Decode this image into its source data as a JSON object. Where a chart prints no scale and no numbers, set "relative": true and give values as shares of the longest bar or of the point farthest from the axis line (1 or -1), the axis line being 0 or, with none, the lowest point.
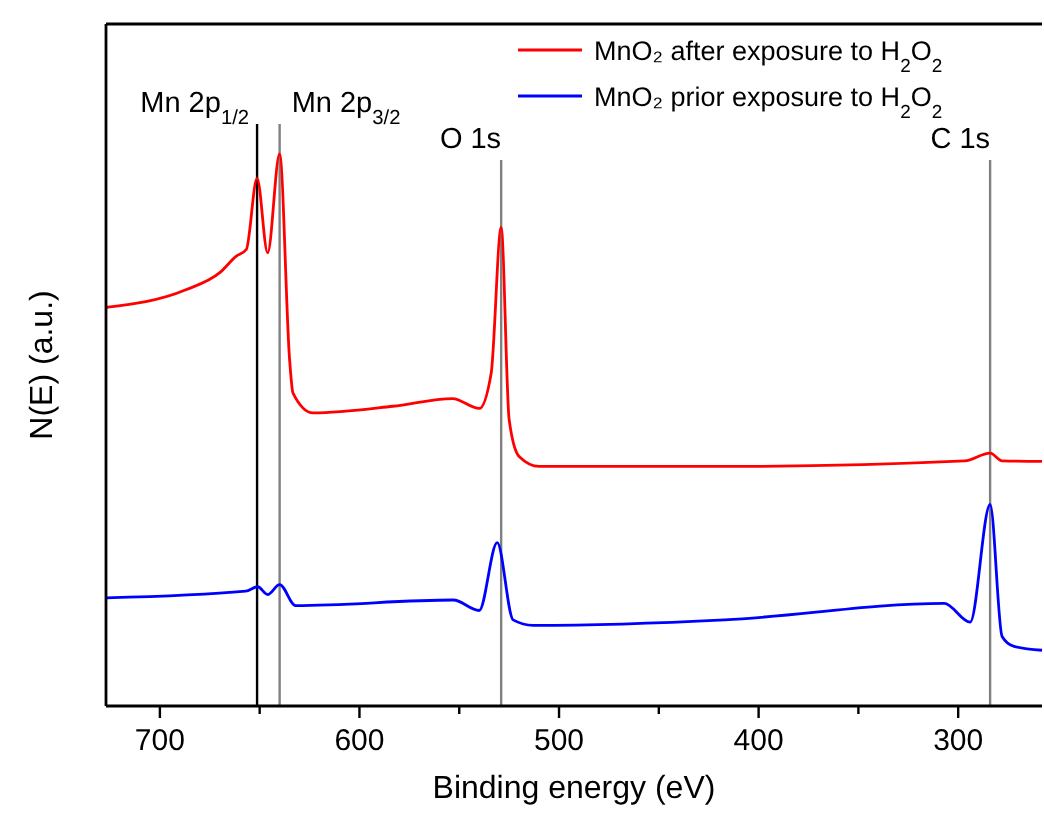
{
  "chart_data": {
    "type": "line",
    "xlabel": "Binding energy (eV)",
    "ylabel": "N(E) (a.u.)",
    "relative": true,
    "xlim": [
      727,
      258
    ],
    "xticks": [
      700,
      {
        "value": 650,
        "label": null
      },
      600,
      {
        "value": 550,
        "label": null
      },
      500,
      {
        "value": 450,
        "label": null
      },
      400,
      {
        "value": 350,
        "label": null
      },
      300
    ],
    "legend": "top right",
    "grid": false,
    "series": [
      {
        "name": "MnO₂ after exposure to H$_{2}$O$_{2}$",
        "color": "#ff0000",
        "x": [
          727,
          687,
          670,
          661.7,
          656.7,
          651.3,
          646,
          640,
          635,
          633.3,
          623.3,
          583.3,
          553.3,
          540,
          534,
          529,
          525,
          520,
          510,
          416.7,
          296.7,
          284,
          278,
          258
        ],
        "values": [
          0.722,
          0.754,
          0.785,
          0.815,
          0.827,
          0.956,
          0.821,
          1.0,
          0.627,
          0.567,
          0.531,
          0.543,
          0.557,
          0.539,
          0.603,
          0.867,
          0.519,
          0.452,
          0.434,
          0.434,
          0.444,
          0.458,
          0.444,
          0.443
        ]
      },
      {
        "name": "MnO₂ prior exposure to H$_{2}$O$_{2}$",
        "color": "#0000ff",
        "x": [
          727,
          657,
          651,
          646,
          640,
          632,
          553,
          540,
          531,
          523,
          513,
          417,
          307,
          294,
          284,
          278,
          272,
          258
        ],
        "values": [
          0.196,
          0.208,
          0.216,
          0.202,
          0.22,
          0.182,
          0.192,
          0.173,
          0.296,
          0.156,
          0.146,
          0.156,
          0.186,
          0.152,
          0.365,
          0.126,
          0.108,
          0.101
        ]
      }
    ],
    "ref_lines": [
      {
        "axis": "x",
        "value": 651.3,
        "label": "Mn 2p$_{1/2}$",
        "color": "#000000"
      },
      {
        "axis": "x",
        "value": 640,
        "label": "Mn 2p$_{3/2}$",
        "color": "#808080"
      },
      {
        "axis": "x",
        "value": 529,
        "label": "O 1s",
        "color": "#808080"
      },
      {
        "axis": "x",
        "value": 284,
        "label": "C 1s",
        "color": "#808080"
      }
    ]
  }
}
